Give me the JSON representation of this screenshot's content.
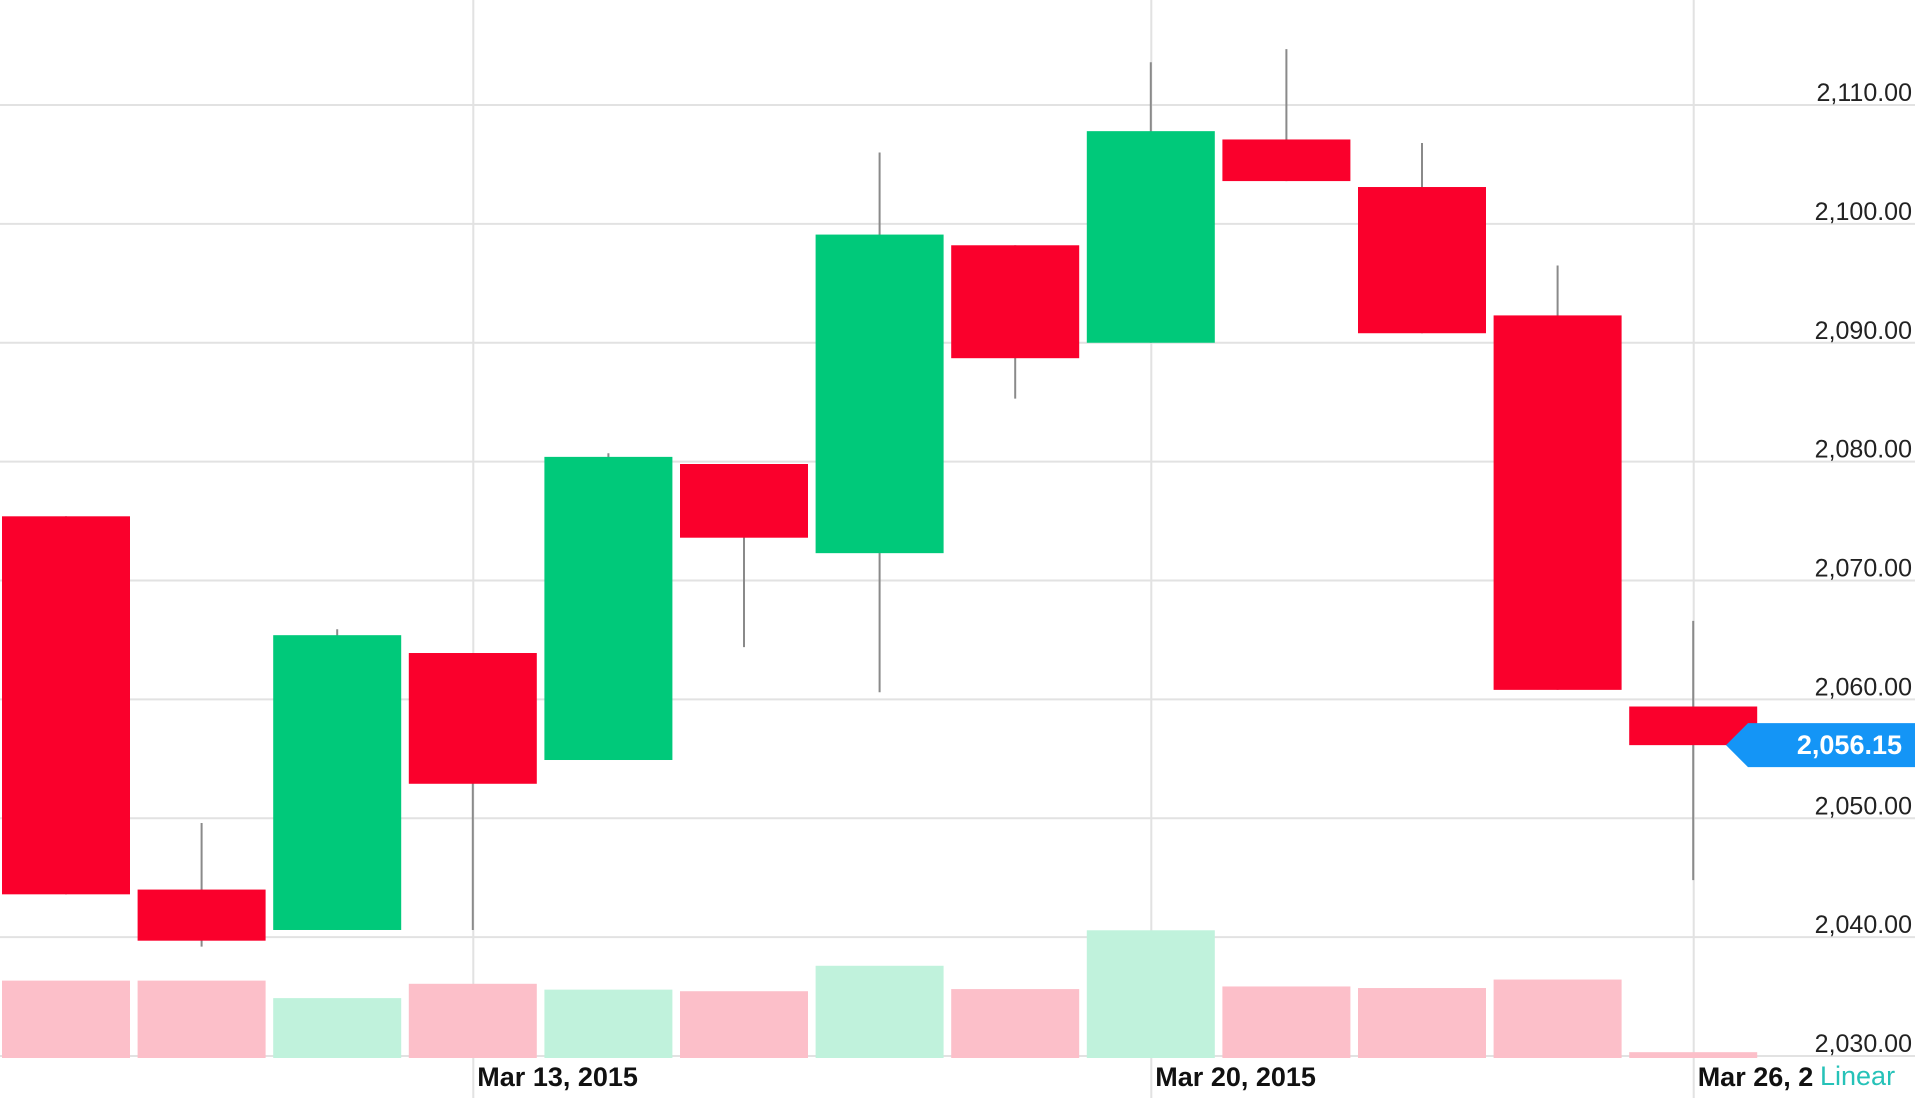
{
  "colors": {
    "up": "#00c97a",
    "down": "#fa002c",
    "up_volume": "#c0f2dc",
    "down_volume": "#fcbfc9",
    "grid": "#e2e2e2",
    "wick": "#8a8a8a",
    "price_tag": "#1495f6",
    "scale_mode": "#26c2b8"
  },
  "chart_data": {
    "type": "candlestick",
    "y_axis": {
      "min": 2030,
      "max": 2110,
      "ticks": [
        2030,
        2040,
        2050,
        2060,
        2070,
        2080,
        2090,
        2100,
        2110
      ],
      "tick_labels": [
        "2,030.00",
        "2,040.00",
        "2,050.00",
        "2,060.00",
        "2,070.00",
        "2,080.00",
        "2,090.00",
        "2,100.00",
        "2,110.00"
      ],
      "position": "right"
    },
    "x_axis": {
      "labels": [
        {
          "text": "Mar 13, 2015",
          "candle_index": 3
        },
        {
          "text": "Mar 20, 2015",
          "candle_index": 8
        },
        {
          "text": "Mar 26, 2",
          "candle_index": 12
        }
      ]
    },
    "grid": true,
    "candles": [
      {
        "date": "2015-03-09",
        "open": 2075.4,
        "high": 2075.4,
        "close": 2043.6,
        "low": 2043.6,
        "volume_pct": 14.6,
        "direction": "down"
      },
      {
        "date": "2015-03-10",
        "open": 2044.0,
        "high": 2049.6,
        "close": 2039.7,
        "low": 2039.2,
        "volume_pct": 14.6,
        "direction": "down"
      },
      {
        "date": "2015-03-11",
        "open": 2040.6,
        "high": 2065.9,
        "close": 2065.4,
        "low": 2040.6,
        "volume_pct": 11.3,
        "direction": "up"
      },
      {
        "date": "2015-03-12",
        "open": 2063.9,
        "high": 2063.9,
        "close": 2052.9,
        "low": 2040.6,
        "volume_pct": 14.0,
        "direction": "down"
      },
      {
        "date": "2015-03-13",
        "open": 2054.9,
        "high": 2080.7,
        "close": 2080.4,
        "low": 2054.9,
        "volume_pct": 12.9,
        "direction": "up"
      },
      {
        "date": "2015-03-16",
        "open": 2079.8,
        "high": 2079.8,
        "close": 2073.6,
        "low": 2064.4,
        "volume_pct": 12.6,
        "direction": "down"
      },
      {
        "date": "2015-03-17",
        "open": 2072.3,
        "high": 2106.0,
        "close": 2099.1,
        "low": 2060.6,
        "volume_pct": 17.4,
        "direction": "up"
      },
      {
        "date": "2015-03-18",
        "open": 2098.2,
        "high": 2098.2,
        "close": 2088.7,
        "low": 2085.3,
        "volume_pct": 13.0,
        "direction": "down"
      },
      {
        "date": "2015-03-19",
        "open": 2090.0,
        "high": 2113.6,
        "close": 2107.8,
        "low": 2090.0,
        "volume_pct": 24.1,
        "direction": "up"
      },
      {
        "date": "2015-03-20",
        "open": 2107.1,
        "high": 2114.7,
        "close": 2103.6,
        "low": 2103.6,
        "volume_pct": 13.5,
        "direction": "down"
      },
      {
        "date": "2015-03-23",
        "open": 2103.1,
        "high": 2106.8,
        "close": 2090.8,
        "low": 2090.8,
        "volume_pct": 13.2,
        "direction": "down"
      },
      {
        "date": "2015-03-24",
        "open": 2092.3,
        "high": 2096.5,
        "close": 2060.8,
        "low": 2060.8,
        "volume_pct": 14.8,
        "direction": "down"
      },
      {
        "date": "2015-03-25",
        "open": 2059.4,
        "high": 2066.6,
        "close": 2056.15,
        "low": 2044.8,
        "volume_pct": 1.1,
        "direction": "down"
      }
    ],
    "last_price": {
      "value": 2056.15,
      "label": "2,056.15"
    },
    "scale_mode": "Linear"
  }
}
